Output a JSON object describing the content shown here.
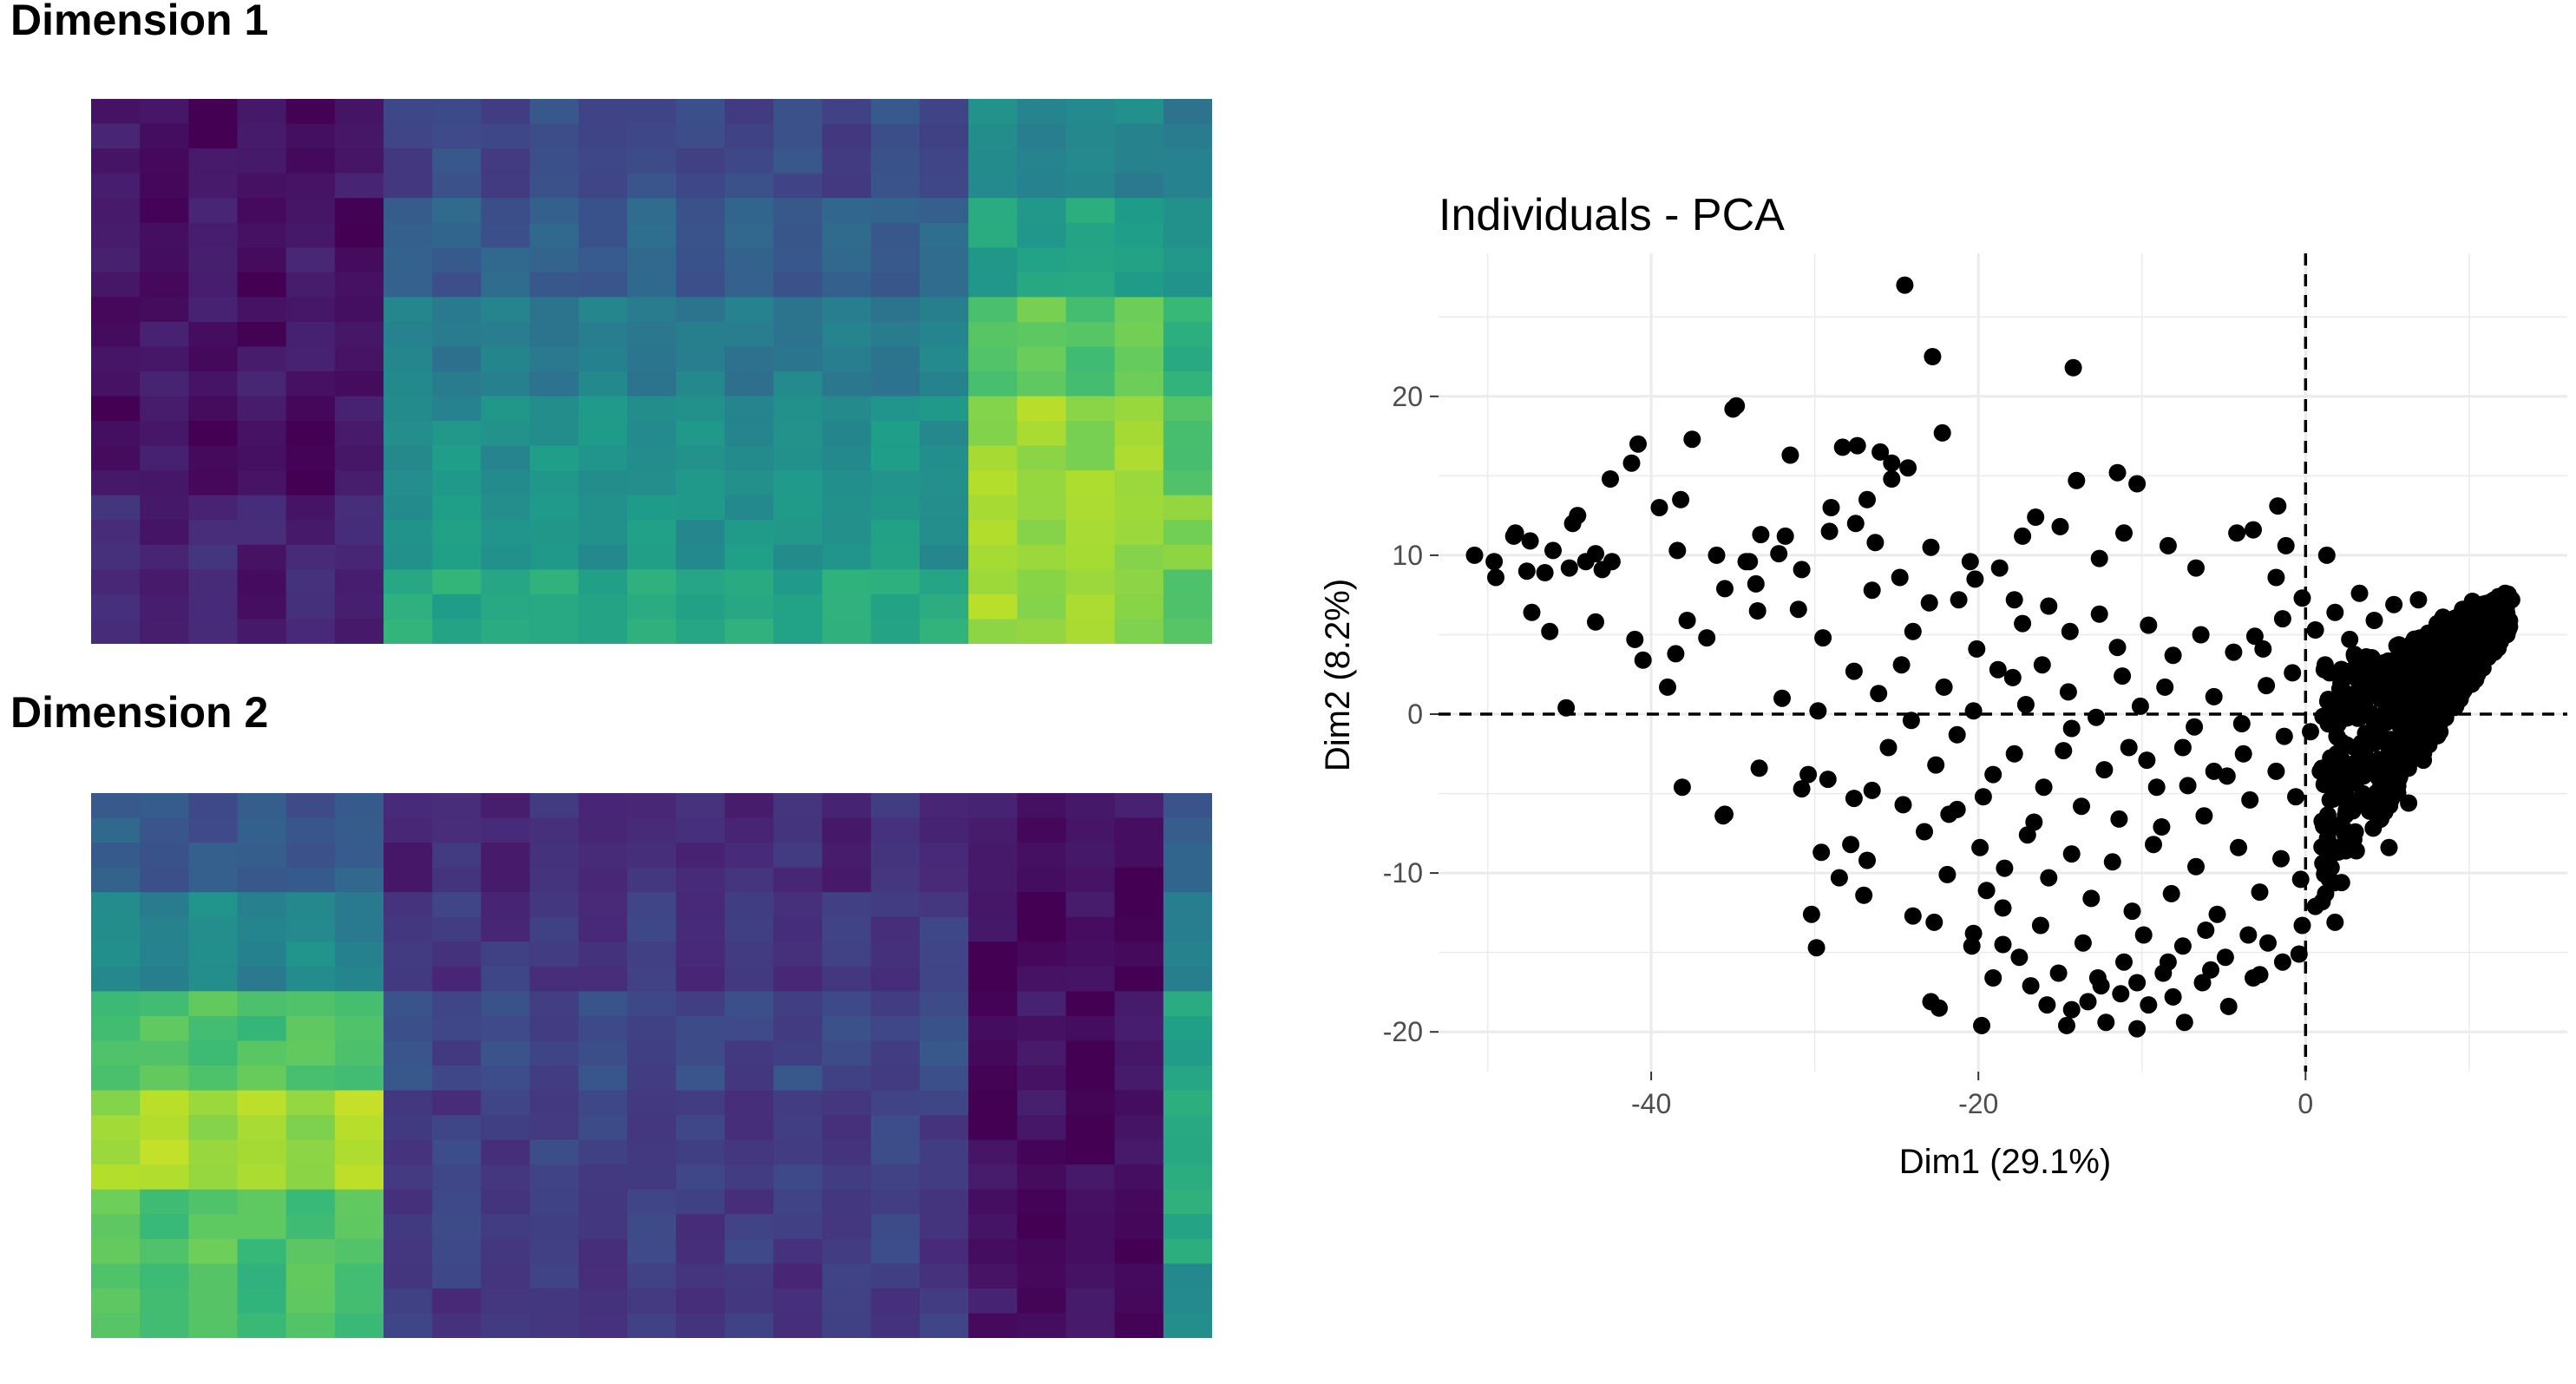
{
  "chart_data": [
    {
      "type": "heatmap",
      "title": "Dimension 1",
      "rows": 22,
      "cols": 23,
      "colormap": "viridis",
      "colorscale": [
        "#440154",
        "#482878",
        "#3e4989",
        "#31688e",
        "#26828e",
        "#1f9e89",
        "#35b779",
        "#6ece58",
        "#b5de2b",
        "#fde725"
      ],
      "column_blocks": [
        [
          0.05,
          0.05,
          0.06,
          0.04,
          0.1,
          0.09
        ],
        [
          0.22,
          0.3,
          0.42,
          0.5,
          0.52,
          0.6
        ],
        [
          0.46,
          0.58,
          0.74,
          0.84,
          0.86,
          0.84
        ],
        [
          0.42,
          0.5,
          0.66,
          0.76,
          0.78,
          0.7
        ],
        [
          0.4,
          0.46,
          0.6,
          0.66,
          0.66,
          0.62
        ]
      ]
    },
    {
      "type": "heatmap",
      "title": "Dimension 2",
      "rows": 22,
      "cols": 23,
      "colormap": "viridis",
      "colorscale": [
        "#440154",
        "#482878",
        "#3e4989",
        "#31688e",
        "#26828e",
        "#1f9e89",
        "#35b779",
        "#6ece58",
        "#b5de2b",
        "#fde725"
      ],
      "column_blocks": [
        [
          0.28,
          0.46,
          0.72,
          0.86,
          0.72,
          0.7
        ],
        [
          0.12,
          0.16,
          0.22,
          0.18,
          0.18,
          0.16
        ],
        [
          0.05,
          0.03,
          0.04,
          0.03,
          0.03,
          0.04
        ],
        [
          0.3,
          0.42,
          0.6,
          0.66,
          0.58,
          0.46
        ],
        [
          0.35,
          0.48,
          0.64,
          0.72,
          0.66,
          0.58
        ]
      ]
    },
    {
      "type": "scatter",
      "title": "Individuals - PCA",
      "xlabel": "Dim1 (29.1%)",
      "ylabel": "Dim2 (8.2%)",
      "xlim": [
        -53,
        16
      ],
      "ylim": [
        -22.5,
        29
      ],
      "xticks": [
        -40,
        -20,
        0
      ],
      "yticks": [
        -20,
        -10,
        0,
        10,
        20
      ],
      "xtick_labels": [
        "-40",
        "-20",
        "0"
      ],
      "ytick_labels": [
        "-20",
        "-10",
        "0",
        "10",
        "20"
      ],
      "reference_lines": {
        "x": 0,
        "y": 0,
        "style": "dashed"
      },
      "point_color": "#000000",
      "grid": true,
      "points": [
        [
          -24.5,
          27
        ],
        [
          -22.8,
          22.5
        ],
        [
          -14.2,
          21.8
        ],
        [
          -35,
          19.2
        ],
        [
          -34.8,
          19.4
        ],
        [
          -22.2,
          17.7
        ],
        [
          -37.5,
          17.3
        ],
        [
          -31.5,
          16.3
        ],
        [
          -40.8,
          17
        ],
        [
          -41.2,
          15.8
        ],
        [
          -28.3,
          16.8
        ],
        [
          -27.4,
          16.9
        ],
        [
          -26,
          16.5
        ],
        [
          -25.3,
          15.8
        ],
        [
          -25.3,
          14.8
        ],
        [
          -24.3,
          15.5
        ],
        [
          -11.5,
          15.2
        ],
        [
          -10.3,
          14.5
        ],
        [
          -14,
          14.7
        ],
        [
          -42.5,
          14.8
        ],
        [
          -39.5,
          13
        ],
        [
          -38.2,
          13.5
        ],
        [
          -26.8,
          13.5
        ],
        [
          -44.5,
          12.5
        ],
        [
          -44.8,
          12
        ],
        [
          -48.4,
          11.2
        ],
        [
          -29,
          13
        ],
        [
          -27.5,
          12
        ],
        [
          -50.8,
          10
        ],
        [
          -48.3,
          11.4
        ],
        [
          -47.4,
          10.9
        ],
        [
          -46.5,
          8.9
        ],
        [
          -46,
          10.3
        ],
        [
          -49.6,
          9.6
        ],
        [
          -49.5,
          8.6
        ],
        [
          -47.6,
          9
        ],
        [
          -45,
          9.2
        ],
        [
          -44,
          9.6
        ],
        [
          -42.4,
          9.6
        ],
        [
          -43.4,
          10.1
        ],
        [
          -43,
          9.1
        ],
        [
          -38.4,
          10.3
        ],
        [
          -36,
          10
        ],
        [
          -34.2,
          9.6
        ],
        [
          -33.3,
          11.3
        ],
        [
          -32.2,
          10.1
        ],
        [
          -31.8,
          11.2
        ],
        [
          -30.8,
          9.1
        ],
        [
          -29.1,
          11.5
        ],
        [
          -26.3,
          10.8
        ],
        [
          -22.9,
          10.5
        ],
        [
          -20.5,
          9.6
        ],
        [
          -18.7,
          9.2
        ],
        [
          -17.3,
          11.2
        ],
        [
          -16.5,
          12.4
        ],
        [
          -15,
          11.8
        ],
        [
          -12.6,
          9.8
        ],
        [
          -11.1,
          11.4
        ],
        [
          -8.4,
          10.6
        ],
        [
          -6.7,
          9.2
        ],
        [
          -4.2,
          11.4
        ],
        [
          -3.2,
          11.6
        ],
        [
          -1.7,
          13.1
        ],
        [
          -1.2,
          10.6
        ],
        [
          1.3,
          10
        ],
        [
          -47.3,
          6.4
        ],
        [
          -46.2,
          5.2
        ],
        [
          -43.4,
          5.8
        ],
        [
          -41,
          4.7
        ],
        [
          -40.5,
          3.4
        ],
        [
          -38.5,
          3.8
        ],
        [
          -37.8,
          5.9
        ],
        [
          -36.6,
          4.8
        ],
        [
          -35.5,
          7.9
        ],
        [
          -34,
          9.6
        ],
        [
          -33.5,
          6.5
        ],
        [
          -33.6,
          8.2
        ],
        [
          -31,
          6.6
        ],
        [
          -29.5,
          4.8
        ],
        [
          -24,
          5.2
        ],
        [
          -20.1,
          4.1
        ],
        [
          -45.2,
          0.4
        ],
        [
          -39,
          1.7
        ],
        [
          -32,
          1
        ],
        [
          -29.8,
          0.2
        ],
        [
          -33.4,
          -3.4
        ],
        [
          -30.4,
          -3.8
        ],
        [
          -35.6,
          -6.4
        ],
        [
          -38.1,
          -4.6
        ],
        [
          -35.5,
          -6.3
        ],
        [
          -30.8,
          -4.7
        ],
        [
          -29.2,
          -4.1
        ],
        [
          -27.6,
          -5.3
        ],
        [
          -26.5,
          -4.8
        ],
        [
          -24.6,
          -5.7
        ],
        [
          -21.3,
          -6
        ],
        [
          -19.7,
          -5.2
        ],
        [
          -16.6,
          -6.8
        ],
        [
          -27.8,
          -8.2
        ],
        [
          -29.6,
          -8.7
        ],
        [
          -29.9,
          -14.7
        ],
        [
          -30.2,
          -12.6
        ],
        [
          -28.5,
          -10.3
        ],
        [
          -27,
          -11.4
        ],
        [
          -26.8,
          -9.2
        ],
        [
          -24,
          -12.7
        ],
        [
          -22.7,
          -13.1
        ],
        [
          -20.3,
          -13.8
        ],
        [
          -21.9,
          -10.1
        ],
        [
          -19.5,
          -11.1
        ],
        [
          -18.5,
          -12.2
        ],
        [
          -20.4,
          -14.6
        ],
        [
          -18.5,
          -14.5
        ],
        [
          -22.9,
          -18.1
        ],
        [
          -22.4,
          -18.5
        ],
        [
          -19.8,
          -19.6
        ],
        [
          -15.8,
          -18.3
        ],
        [
          -14.6,
          -19.6
        ],
        [
          -12.2,
          -19.4
        ],
        [
          -10.3,
          -19.8
        ],
        [
          -7.4,
          -19.4
        ],
        [
          -4.7,
          -18.4
        ],
        [
          -2.8,
          -16.4
        ],
        [
          -1.4,
          -15.6
        ],
        [
          -0.2,
          -13.3
        ],
        [
          -17.9,
          2.3
        ],
        [
          -14.3,
          -0.9
        ],
        [
          -10.8,
          -2.1
        ],
        [
          -9.1,
          -4.6
        ],
        [
          -7.2,
          -4.5
        ],
        [
          -5.6,
          -3.6
        ],
        [
          -3.8,
          -2.5
        ],
        [
          -26.5,
          7.8
        ],
        [
          -24.8,
          8.6
        ],
        [
          -23,
          7
        ],
        [
          -21.2,
          7.2
        ],
        [
          -20.2,
          8.5
        ],
        [
          -17.8,
          7.2
        ],
        [
          -17.3,
          5.7
        ],
        [
          -15.7,
          6.8
        ],
        [
          -14.4,
          5.2
        ],
        [
          -12.6,
          6.3
        ],
        [
          -11.5,
          4.2
        ],
        [
          -9.6,
          5.6
        ],
        [
          -8.1,
          3.7
        ],
        [
          -6.4,
          5
        ],
        [
          -4.4,
          3.9
        ],
        [
          -3.1,
          4.9
        ],
        [
          -1.4,
          6
        ],
        [
          -27.6,
          2.7
        ],
        [
          -26.1,
          1.3
        ],
        [
          -24.7,
          3.1
        ],
        [
          -22.1,
          1.7
        ],
        [
          -20.3,
          0.2
        ],
        [
          -18.8,
          2.8
        ],
        [
          -17.1,
          0.6
        ],
        [
          -16.1,
          3.1
        ],
        [
          -14.5,
          1.4
        ],
        [
          -12.8,
          -0.2
        ],
        [
          -11.2,
          2.4
        ],
        [
          -10.1,
          0.5
        ],
        [
          -8.6,
          1.7
        ],
        [
          -6.8,
          -0.8
        ],
        [
          -5.6,
          1.1
        ],
        [
          -3.9,
          -0.6
        ],
        [
          -2.4,
          1.8
        ],
        [
          -1.3,
          -1.4
        ],
        [
          -25.5,
          -2.1
        ],
        [
          -24.1,
          -0.4
        ],
        [
          -22.6,
          -3.2
        ],
        [
          -21.3,
          -1.3
        ],
        [
          -19.1,
          -3.8
        ],
        [
          -17.8,
          -2.5
        ],
        [
          -16,
          -4.6
        ],
        [
          -14.8,
          -2.3
        ],
        [
          -13.7,
          -5.8
        ],
        [
          -12.3,
          -3.5
        ],
        [
          -11.4,
          -6.6
        ],
        [
          -9.7,
          -2.9
        ],
        [
          -8.8,
          -7.1
        ],
        [
          -7.5,
          -2.1
        ],
        [
          -6.2,
          -6.4
        ],
        [
          -4.8,
          -3.9
        ],
        [
          -3.4,
          -5.4
        ],
        [
          -1.8,
          -3.6
        ],
        [
          -0.6,
          -5.2
        ],
        [
          -23.3,
          -7.4
        ],
        [
          -21.8,
          -6.3
        ],
        [
          -19.9,
          -8.4
        ],
        [
          -18.4,
          -9.7
        ],
        [
          -17,
          -7.6
        ],
        [
          -15.7,
          -10.3
        ],
        [
          -14.3,
          -8.8
        ],
        [
          -13.1,
          -11.6
        ],
        [
          -11.8,
          -9.3
        ],
        [
          -10.6,
          -12.4
        ],
        [
          -9.3,
          -8.2
        ],
        [
          -8.2,
          -11.3
        ],
        [
          -6.7,
          -9.6
        ],
        [
          -5.4,
          -12.6
        ],
        [
          -4.1,
          -8.4
        ],
        [
          -2.8,
          -11.2
        ],
        [
          -1.5,
          -9.1
        ],
        [
          -0.3,
          -10.4
        ],
        [
          -17.5,
          -15.3
        ],
        [
          -16.2,
          -13.3
        ],
        [
          -15.1,
          -16.3
        ],
        [
          -13.6,
          -14.4
        ],
        [
          -12.5,
          -17.1
        ],
        [
          -11.1,
          -15.6
        ],
        [
          -9.9,
          -13.9
        ],
        [
          -8.7,
          -16.3
        ],
        [
          -7.5,
          -14.6
        ],
        [
          -6.1,
          -13.6
        ],
        [
          -4.9,
          -15.3
        ],
        [
          -3.5,
          -13.9
        ],
        [
          -2.3,
          -14.4
        ],
        [
          -13.3,
          -18.1
        ],
        [
          -11.3,
          -17.6
        ],
        [
          -9.6,
          -18.3
        ],
        [
          -8.1,
          -17.8
        ],
        [
          -6.3,
          -16.9
        ],
        [
          -2.6,
          4.1
        ],
        [
          -1.8,
          8.6
        ],
        [
          -0.8,
          2.6
        ],
        [
          -0.2,
          7.3
        ],
        [
          0.3,
          -1.1
        ],
        [
          0.6,
          5.3
        ],
        [
          0.9,
          -3.6
        ],
        [
          1.2,
          3.1
        ],
        [
          1.5,
          -5.4
        ],
        [
          1.8,
          6.4
        ],
        [
          2.1,
          1.6
        ],
        [
          2.4,
          -7.3
        ],
        [
          2.7,
          4.7
        ],
        [
          3,
          -2.1
        ],
        [
          3.3,
          7.6
        ],
        [
          3.6,
          0.6
        ],
        [
          3.9,
          -6.1
        ],
        [
          4.2,
          5.9
        ],
        [
          4.5,
          -3.2
        ],
        [
          4.8,
          2.6
        ],
        [
          5.1,
          -8.4
        ],
        [
          5.4,
          6.9
        ],
        [
          5.7,
          -0.6
        ],
        [
          6,
          4.1
        ],
        [
          6.3,
          -5.6
        ],
        [
          6.6,
          1.9
        ],
        [
          6.9,
          7.2
        ],
        [
          7.2,
          -2.9
        ],
        [
          7.5,
          5.1
        ],
        [
          7.8,
          -1.4
        ],
        [
          8.1,
          3.4
        ],
        [
          8.4,
          6.1
        ],
        [
          8.7,
          0.9
        ],
        [
          9,
          4.6
        ],
        [
          9.3,
          2.1
        ],
        [
          9.6,
          6.6
        ],
        [
          9.9,
          3.9
        ],
        [
          10.2,
          7.1
        ],
        [
          10.6,
          5.4
        ],
        [
          11,
          6.8
        ],
        [
          11.4,
          7.1
        ],
        [
          11.8,
          7.4
        ],
        [
          12.2,
          7.6
        ],
        [
          12.6,
          7.2
        ],
        [
          1.4,
          -9.1
        ],
        [
          2.2,
          -10.6
        ],
        [
          3.1,
          -8.6
        ],
        [
          0.6,
          -12.1
        ],
        [
          1.8,
          -13.1
        ],
        [
          -0.4,
          -15.1
        ],
        [
          -3.2,
          -16.6
        ],
        [
          -5.8,
          -16.1
        ],
        [
          -8.4,
          -15.6
        ],
        [
          -10.3,
          -16.9
        ],
        [
          -12.7,
          -16.6
        ],
        [
          -14.3,
          -18.6
        ],
        [
          -16.8,
          -17.1
        ],
        [
          -19.1,
          -16.6
        ]
      ]
    }
  ]
}
